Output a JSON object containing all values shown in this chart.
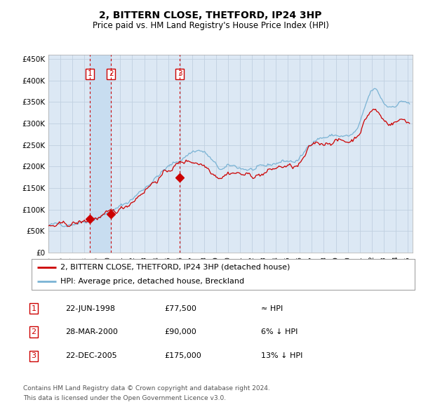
{
  "title": "2, BITTERN CLOSE, THETFORD, IP24 3HP",
  "subtitle": "Price paid vs. HM Land Registry's House Price Index (HPI)",
  "legend_line1": "2, BITTERN CLOSE, THETFORD, IP24 3HP (detached house)",
  "legend_line2": "HPI: Average price, detached house, Breckland",
  "sale1_date": "22-JUN-1998",
  "sale1_price": 77500,
  "sale1_label": "1",
  "sale1_rel": "≈ HPI",
  "sale2_date": "28-MAR-2000",
  "sale2_price": 90000,
  "sale2_label": "2",
  "sale2_rel": "6% ↓ HPI",
  "sale3_date": "22-DEC-2005",
  "sale3_price": 175000,
  "sale3_label": "3",
  "sale3_rel": "13% ↓ HPI",
  "footnote1": "Contains HM Land Registry data © Crown copyright and database right 2024.",
  "footnote2": "This data is licensed under the Open Government Licence v3.0.",
  "hpi_color": "#7ab3d4",
  "price_color": "#cc0000",
  "vline_color": "#cc0000",
  "shade_color": "#c8ddf0",
  "label_box_color": "#cc0000",
  "grid_color": "#c0d0e0",
  "bg_color": "#dce8f4",
  "ylim": [
    0,
    460000
  ],
  "yticks": [
    0,
    50000,
    100000,
    150000,
    200000,
    250000,
    300000,
    350000,
    400000,
    450000
  ],
  "ytick_labels": [
    "£0",
    "£50K",
    "£100K",
    "£150K",
    "£200K",
    "£250K",
    "£300K",
    "£350K",
    "£400K",
    "£450K"
  ]
}
